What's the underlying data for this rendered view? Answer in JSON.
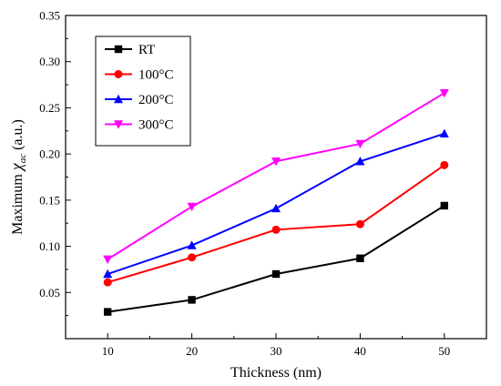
{
  "chart_data": {
    "type": "line",
    "title": "",
    "xlabel": "Thickness (nm)",
    "ylabel": {
      "prefix": "Maximum ",
      "symbol": "χ",
      "subscript": "ac",
      "suffix": " (a.u.)"
    },
    "x": [
      10,
      20,
      30,
      40,
      50
    ],
    "xlim": [
      5,
      55
    ],
    "ylim": [
      0.0,
      0.35
    ],
    "xticks": [
      10,
      20,
      30,
      40,
      50
    ],
    "xtick_labels": [
      "10",
      "20",
      "30",
      "40",
      "50"
    ],
    "yticks": [
      0.05,
      0.1,
      0.15,
      0.2,
      0.25,
      0.3,
      0.35
    ],
    "ytick_labels": [
      "0.05",
      "0.10",
      "0.15",
      "0.20",
      "0.25",
      "0.30",
      "0.35"
    ],
    "grid": false,
    "legend_position": "top-left",
    "series": [
      {
        "name": "RT",
        "color": "#000000",
        "marker": "square",
        "values": [
          0.029,
          0.042,
          0.07,
          0.087,
          0.144
        ]
      },
      {
        "name": "100°C",
        "color": "#ff0000",
        "marker": "circle",
        "values": [
          0.061,
          0.088,
          0.118,
          0.124,
          0.188
        ]
      },
      {
        "name": "200°C",
        "color": "#0000ff",
        "marker": "triangle-up",
        "values": [
          0.07,
          0.101,
          0.141,
          0.192,
          0.222
        ]
      },
      {
        "name": "300°C",
        "color": "#ff00ff",
        "marker": "triangle-down",
        "values": [
          0.086,
          0.143,
          0.192,
          0.211,
          0.266
        ]
      }
    ]
  }
}
